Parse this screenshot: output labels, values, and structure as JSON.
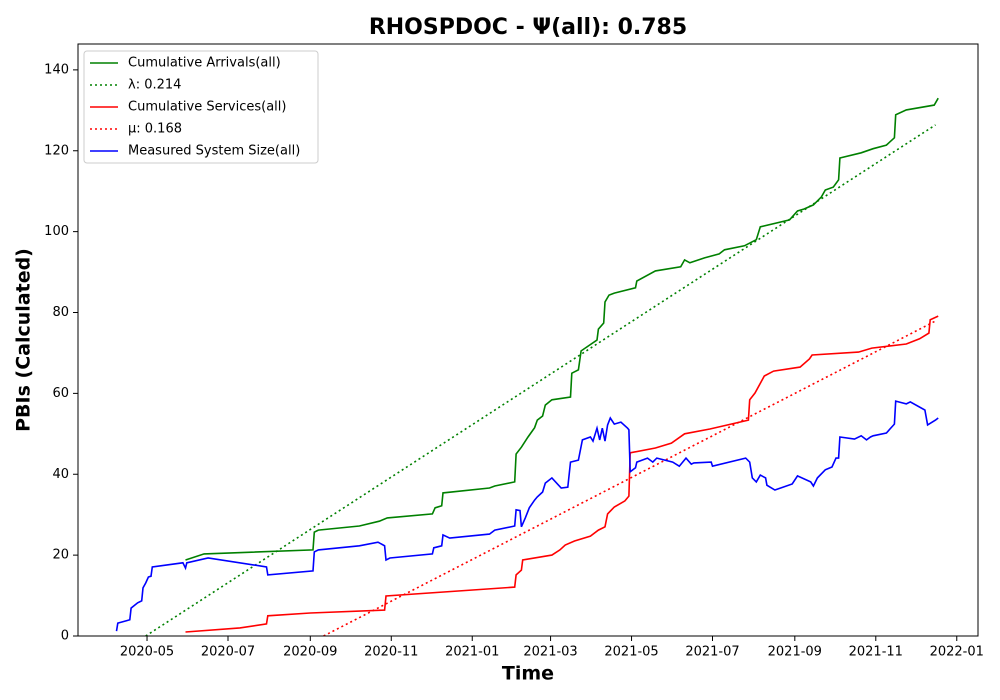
{
  "chart_data": {
    "type": "line",
    "title": "RHOSPDOC -  Ψ(all): 0.785",
    "x_label": "Time",
    "y_label": "PBIs (Calculated)",
    "xlim": [
      "2020-03-10",
      "2022-01-17"
    ],
    "ylim": [
      0,
      146.4
    ],
    "yticks": [
      0,
      20,
      40,
      60,
      80,
      100,
      120,
      140
    ],
    "xticks": [
      {
        "value": "2020-05-01",
        "label": "2020-05"
      },
      {
        "value": "2020-07-01",
        "label": "2020-07"
      },
      {
        "value": "2020-09-01",
        "label": "2020-09"
      },
      {
        "value": "2020-11-01",
        "label": "2020-11"
      },
      {
        "value": "2021-01-01",
        "label": "2021-01"
      },
      {
        "value": "2021-03-01",
        "label": "2021-03"
      },
      {
        "value": "2021-05-01",
        "label": "2021-05"
      },
      {
        "value": "2021-07-01",
        "label": "2021-07"
      },
      {
        "value": "2021-09-01",
        "label": "2021-09"
      },
      {
        "value": "2021-11-01",
        "label": "2021-11"
      },
      {
        "value": "2022-01-01",
        "label": "2022-01"
      }
    ],
    "legend": "upper left",
    "series": [
      {
        "name": "Cumulative Arrivals(all)",
        "color": "#008000",
        "linestyle": "solid",
        "x": [
          "2020-05-30",
          "2020-06-13",
          "2020-09-03",
          "2020-09-04",
          "2020-09-07",
          "2020-10-08",
          "2020-10-23",
          "2020-10-29",
          "2020-12-02",
          "2020-12-04",
          "2020-12-09",
          "2020-12-10",
          "2021-01-14",
          "2021-01-18",
          "2021-02-02",
          "2021-02-03",
          "2021-02-07",
          "2021-02-12",
          "2021-02-17",
          "2021-02-19",
          "2021-02-23",
          "2021-02-25",
          "2021-03-02",
          "2021-03-16",
          "2021-03-17",
          "2021-03-22",
          "2021-03-24",
          "2021-04-05",
          "2021-04-06",
          "2021-04-10",
          "2021-04-11",
          "2021-04-14",
          "2021-04-18",
          "2021-05-04",
          "2021-05-05",
          "2021-05-19",
          "2021-06-07",
          "2021-06-10",
          "2021-06-14",
          "2021-06-25",
          "2021-07-06",
          "2021-07-10",
          "2021-07-25",
          "2021-08-03",
          "2021-08-06",
          "2021-08-28",
          "2021-09-03",
          "2021-09-08",
          "2021-09-15",
          "2021-09-21",
          "2021-09-24",
          "2021-09-30",
          "2021-10-04",
          "2021-10-05",
          "2021-10-21",
          "2021-10-30",
          "2021-11-09",
          "2021-11-15",
          "2021-11-16",
          "2021-11-24",
          "2021-12-15",
          "2021-12-18"
        ],
        "values": [
          18.8,
          20.3,
          21.3,
          25.7,
          26.2,
          27.2,
          28.4,
          29.2,
          30.2,
          31.7,
          32.2,
          35.4,
          36.6,
          37.1,
          38.1,
          45,
          46.7,
          49.2,
          51.5,
          53.4,
          54.4,
          57.1,
          58.4,
          59.1,
          65,
          65.8,
          70.5,
          73.2,
          75.9,
          77.4,
          82.6,
          84.3,
          84.8,
          86.1,
          87.8,
          90.3,
          91.3,
          93,
          92.3,
          93.5,
          94.5,
          95.5,
          96.5,
          98,
          101.2,
          102.9,
          105.1,
          105.6,
          106.6,
          108.6,
          110.3,
          111,
          112.8,
          118.2,
          119.5,
          120.5,
          121.4,
          123.2,
          128.9,
          130.1,
          131.3,
          133
        ]
      },
      {
        "name": "λ: 0.214",
        "color": "#008000",
        "linestyle": "dotted",
        "x": [
          "2020-04-30",
          "2021-12-16"
        ],
        "values": [
          0,
          126.4
        ]
      },
      {
        "name": "Cumulative Services(all)",
        "color": "#ff0000",
        "linestyle": "solid",
        "x": [
          "2020-05-30",
          "2020-07-10",
          "2020-07-30",
          "2020-07-31",
          "2020-09-01",
          "2020-10-27",
          "2020-10-28",
          "2021-02-02",
          "2021-02-03",
          "2021-02-07",
          "2021-02-08",
          "2021-03-02",
          "2021-03-08",
          "2021-03-12",
          "2021-03-19",
          "2021-03-31",
          "2021-04-06",
          "2021-04-11",
          "2021-04-13",
          "2021-04-18",
          "2021-04-26",
          "2021-04-29",
          "2021-04-30",
          "2021-05-19",
          "2021-05-31",
          "2021-06-10",
          "2021-06-29",
          "2021-07-28",
          "2021-07-29",
          "2021-08-02",
          "2021-08-09",
          "2021-08-16",
          "2021-09-05",
          "2021-09-12",
          "2021-09-14",
          "2021-10-19",
          "2021-10-29",
          "2021-11-24",
          "2021-12-04",
          "2021-12-11",
          "2021-12-12",
          "2021-12-18"
        ],
        "values": [
          1,
          2,
          3,
          5,
          5.7,
          6.4,
          9.9,
          12.1,
          15.1,
          16.3,
          18.8,
          20,
          21.3,
          22.5,
          23.5,
          24.7,
          26.2,
          27,
          30.2,
          31.9,
          33.4,
          34.6,
          45.3,
          46.5,
          47.7,
          50,
          51.2,
          53.4,
          58.4,
          60.1,
          64.3,
          65.5,
          66.5,
          68.5,
          69.5,
          70.2,
          71.2,
          72.2,
          73.5,
          74.9,
          78.2,
          79.1
        ]
      },
      {
        "name": "μ: 0.168",
        "color": "#ff0000",
        "linestyle": "dotted",
        "x": [
          "2020-09-11",
          "2021-12-16"
        ],
        "values": [
          0,
          77.9
        ]
      },
      {
        "name": "Measured System Size(all)",
        "color": "#0000ff",
        "linestyle": "solid",
        "x": [
          "2020-04-08",
          "2020-04-09",
          "2020-04-18",
          "2020-04-19",
          "2020-04-24",
          "2020-04-27",
          "2020-04-28",
          "2020-04-30",
          "2020-05-02",
          "2020-05-04",
          "2020-05-05",
          "2020-05-28",
          "2020-05-30",
          "2020-05-31",
          "2020-06-16",
          "2020-07-30",
          "2020-07-31",
          "2020-09-03",
          "2020-09-04",
          "2020-09-07",
          "2020-10-08",
          "2020-10-22",
          "2020-10-27",
          "2020-10-28",
          "2020-10-31",
          "2020-12-02",
          "2020-12-03",
          "2020-12-09",
          "2020-12-10",
          "2020-12-15",
          "2021-01-14",
          "2021-01-18",
          "2021-02-02",
          "2021-02-03",
          "2021-02-06",
          "2021-02-07",
          "2021-02-10",
          "2021-02-13",
          "2021-02-17",
          "2021-02-19",
          "2021-02-23",
          "2021-02-25",
          "2021-03-02",
          "2021-03-09",
          "2021-03-14",
          "2021-03-16",
          "2021-03-22",
          "2021-03-25",
          "2021-03-31",
          "2021-04-02",
          "2021-04-05",
          "2021-04-07",
          "2021-04-09",
          "2021-04-11",
          "2021-04-13",
          "2021-04-15",
          "2021-04-18",
          "2021-04-23",
          "2021-04-28",
          "2021-04-29",
          "2021-04-30",
          "2021-05-04",
          "2021-05-05",
          "2021-05-13",
          "2021-05-17",
          "2021-05-20",
          "2021-06-01",
          "2021-06-06",
          "2021-06-11",
          "2021-06-15",
          "2021-06-17",
          "2021-06-30",
          "2021-07-01",
          "2021-07-26",
          "2021-07-29",
          "2021-07-31",
          "2021-08-03",
          "2021-08-06",
          "2021-08-10",
          "2021-08-11",
          "2021-08-17",
          "2021-08-30",
          "2021-09-03",
          "2021-09-13",
          "2021-09-15",
          "2021-09-18",
          "2021-09-24",
          "2021-09-29",
          "2021-10-02",
          "2021-10-04",
          "2021-10-05",
          "2021-10-16",
          "2021-10-21",
          "2021-10-25",
          "2021-10-28",
          "2021-10-30",
          "2021-11-09",
          "2021-11-15",
          "2021-11-16",
          "2021-11-24",
          "2021-11-27",
          "2021-12-08",
          "2021-12-10",
          "2021-12-16",
          "2021-12-18"
        ],
        "values": [
          1.2,
          3.2,
          4,
          6.9,
          8.2,
          8.7,
          11.9,
          13.1,
          14.6,
          14.8,
          17.1,
          18.1,
          16.8,
          18.1,
          19.3,
          17.1,
          15.1,
          16.1,
          20.8,
          21.3,
          22.3,
          23.2,
          22.3,
          18.8,
          19.3,
          20.3,
          21.8,
          22.3,
          25,
          24.2,
          25.2,
          26.2,
          27.2,
          31.2,
          31,
          27,
          29.2,
          31.7,
          33.6,
          34.4,
          35.6,
          37.8,
          39.1,
          36.6,
          36.8,
          43,
          43.5,
          48.5,
          49.2,
          48.2,
          51.4,
          48.5,
          51.4,
          48.2,
          52.2,
          53.9,
          52.4,
          52.9,
          51.4,
          51,
          40.6,
          41.6,
          43,
          44,
          43,
          44,
          43,
          42,
          44,
          42.5,
          42.8,
          43,
          42,
          44,
          43,
          39.1,
          38.1,
          39.8,
          39.1,
          37.3,
          36.1,
          37.6,
          39.6,
          38.1,
          37.1,
          39.1,
          41.1,
          41.8,
          44,
          44,
          49.2,
          48.7,
          49.5,
          48.5,
          49.2,
          49.5,
          50.2,
          52.4,
          58.1,
          57.4,
          57.9,
          55.9,
          52.2,
          53.4,
          53.9
        ]
      }
    ]
  }
}
